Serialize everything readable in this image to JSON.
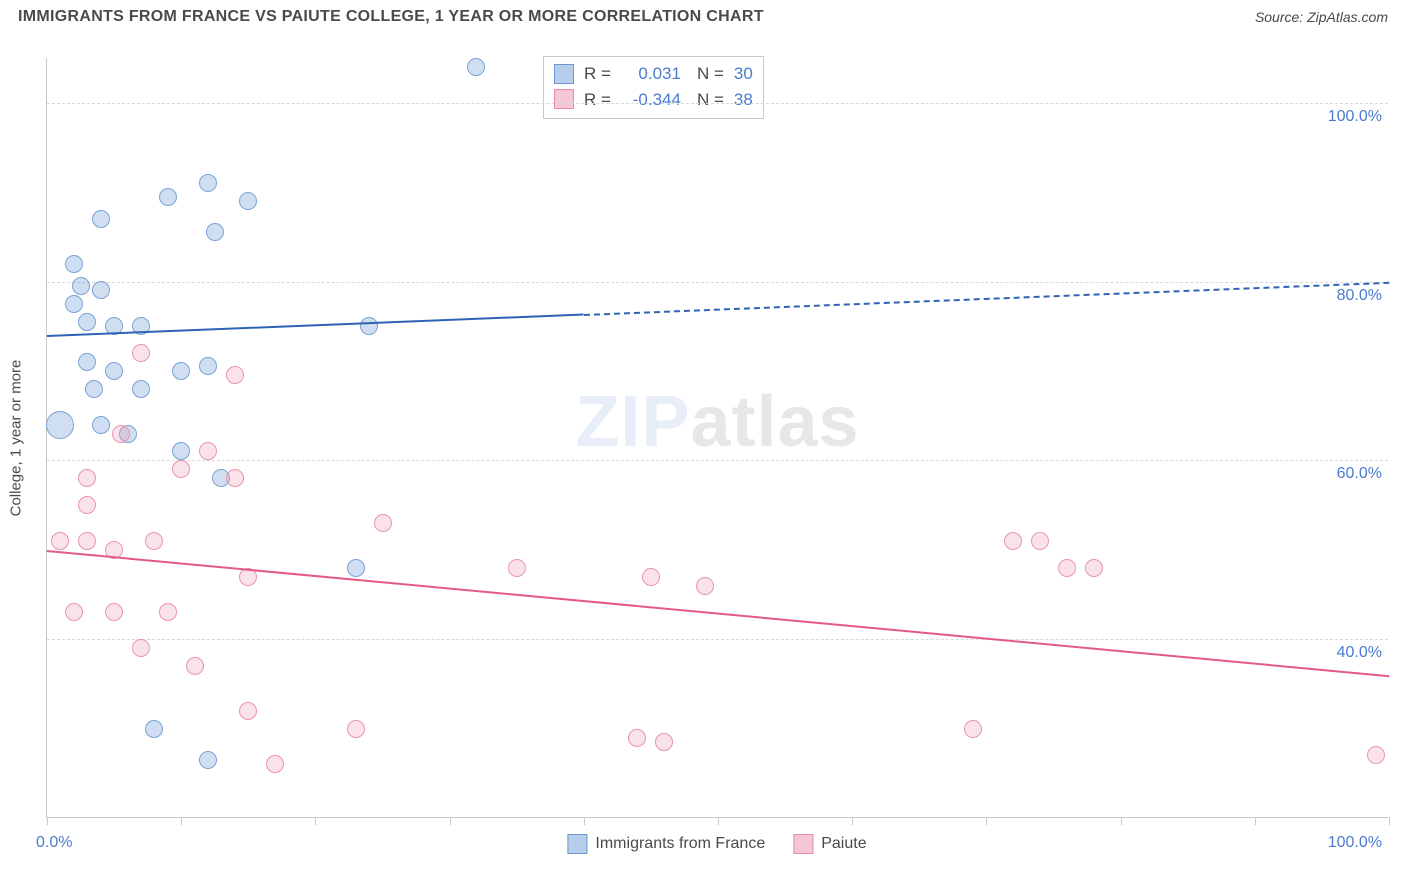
{
  "header": {
    "title": "IMMIGRANTS FROM FRANCE VS PAIUTE COLLEGE, 1 YEAR OR MORE CORRELATION CHART",
    "source": "Source: ZipAtlas.com"
  },
  "axes": {
    "ylabel": "College, 1 year or more",
    "x_min_label": "0.0%",
    "x_max_label": "100.0%",
    "ylim": [
      20,
      105
    ],
    "xlim": [
      0,
      100
    ],
    "y_ticks": [
      40,
      60,
      80,
      100
    ],
    "y_tick_labels": [
      "40.0%",
      "60.0%",
      "80.0%",
      "100.0%"
    ],
    "x_ticks": [
      0,
      10,
      20,
      30,
      40,
      50,
      60,
      70,
      80,
      90,
      100
    ],
    "grid_color": "#d8d8d8",
    "axis_color": "#c8c8c8",
    "tick_label_color": "#4a7bd0",
    "tick_fontsize": 16,
    "label_fontsize": 15
  },
  "chart": {
    "type": "scatter",
    "background_color": "#ffffff",
    "marker_radius": 9,
    "marker_radius_large": 14,
    "series": [
      {
        "name": "Immigrants from France",
        "color_fill": "rgba(120,160,215,0.35)",
        "color_stroke": "#7ba3d6",
        "swatch_fill": "#b6cdec",
        "swatch_stroke": "#6f98cf",
        "R": "0.031",
        "N": "30",
        "trend": {
          "x0": 0,
          "y0": 74,
          "x1": 100,
          "y1": 80,
          "solid_until_x": 40,
          "color": "#2f63b6"
        },
        "points": [
          {
            "x": 32,
            "y": 104
          },
          {
            "x": 12,
            "y": 91
          },
          {
            "x": 9,
            "y": 89.5
          },
          {
            "x": 15,
            "y": 89
          },
          {
            "x": 4,
            "y": 87
          },
          {
            "x": 12.5,
            "y": 85.5
          },
          {
            "x": 2,
            "y": 82
          },
          {
            "x": 2.5,
            "y": 79.5
          },
          {
            "x": 4,
            "y": 79
          },
          {
            "x": 2,
            "y": 77.5
          },
          {
            "x": 3,
            "y": 75.5
          },
          {
            "x": 5,
            "y": 75
          },
          {
            "x": 7,
            "y": 75
          },
          {
            "x": 24,
            "y": 75
          },
          {
            "x": 3,
            "y": 71
          },
          {
            "x": 5,
            "y": 70
          },
          {
            "x": 10,
            "y": 70
          },
          {
            "x": 12,
            "y": 70.5
          },
          {
            "x": 3.5,
            "y": 68
          },
          {
            "x": 7,
            "y": 68
          },
          {
            "x": 1,
            "y": 64,
            "r": 14
          },
          {
            "x": 4,
            "y": 64
          },
          {
            "x": 6,
            "y": 63
          },
          {
            "x": 10,
            "y": 61
          },
          {
            "x": 13,
            "y": 58
          },
          {
            "x": 23,
            "y": 48
          },
          {
            "x": 8,
            "y": 30
          },
          {
            "x": 12,
            "y": 26.5
          }
        ]
      },
      {
        "name": "Paiute",
        "color_fill": "rgba(235,150,175,0.28)",
        "color_stroke": "#e995af",
        "swatch_fill": "#f5c6d4",
        "swatch_stroke": "#e58ba8",
        "R": "-0.344",
        "N": "38",
        "trend": {
          "x0": 0,
          "y0": 50,
          "x1": 100,
          "y1": 36,
          "solid_until_x": 100,
          "color": "#e35a86"
        },
        "points": [
          {
            "x": 7,
            "y": 72
          },
          {
            "x": 14,
            "y": 69.5
          },
          {
            "x": 5.5,
            "y": 63
          },
          {
            "x": 12,
            "y": 61
          },
          {
            "x": 3,
            "y": 58
          },
          {
            "x": 10,
            "y": 59
          },
          {
            "x": 14,
            "y": 58
          },
          {
            "x": 3,
            "y": 55
          },
          {
            "x": 25,
            "y": 53
          },
          {
            "x": 1,
            "y": 51
          },
          {
            "x": 3,
            "y": 51
          },
          {
            "x": 8,
            "y": 51
          },
          {
            "x": 5,
            "y": 50
          },
          {
            "x": 35,
            "y": 48
          },
          {
            "x": 45,
            "y": 47
          },
          {
            "x": 49,
            "y": 46
          },
          {
            "x": 72,
            "y": 51
          },
          {
            "x": 74,
            "y": 51
          },
          {
            "x": 76,
            "y": 48
          },
          {
            "x": 78,
            "y": 48
          },
          {
            "x": 15,
            "y": 47
          },
          {
            "x": 2,
            "y": 43
          },
          {
            "x": 5,
            "y": 43
          },
          {
            "x": 9,
            "y": 43
          },
          {
            "x": 7,
            "y": 39
          },
          {
            "x": 11,
            "y": 37
          },
          {
            "x": 15,
            "y": 32
          },
          {
            "x": 23,
            "y": 30
          },
          {
            "x": 44,
            "y": 29
          },
          {
            "x": 46,
            "y": 28.5
          },
          {
            "x": 69,
            "y": 30
          },
          {
            "x": 17,
            "y": 26
          },
          {
            "x": 99,
            "y": 27
          }
        ]
      }
    ]
  },
  "legend_bottom": {
    "items": [
      "Immigrants from France",
      "Paiute"
    ]
  },
  "watermark": {
    "prefix": "ZIP",
    "suffix": "atlas"
  }
}
